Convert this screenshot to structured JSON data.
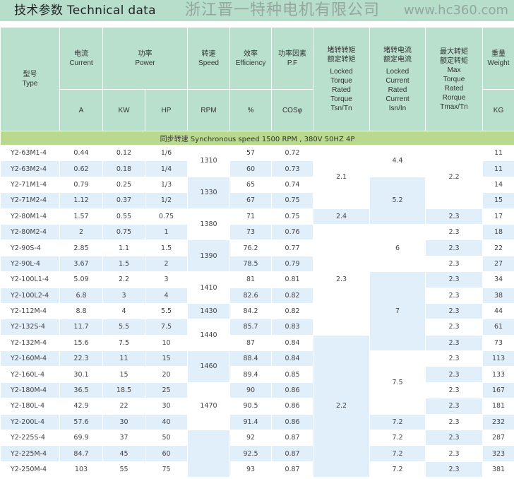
{
  "title": "技术参数  Technical data",
  "header": {
    "type_zh": "型号",
    "type_en": "Type",
    "current_zh": "电流",
    "current_en": "Current",
    "current_unit": "A",
    "power_zh": "功率",
    "power_en": "Power",
    "kw": "KW",
    "hp": "HP",
    "speed_zh": "转速",
    "speed_en": "Speed",
    "speed_unit": "RPM",
    "eff_zh": "效率",
    "eff_en": "Efficiency",
    "eff_unit": "%",
    "pf_zh": "功率因素",
    "pf_en": "P.F",
    "pf_unit": "COSφ",
    "tsn_zh1": "堵转转矩",
    "tsn_zh2": "额定转矩",
    "tsn_en": "Locked Torque Rated Torque Tsn/Tn",
    "isn_zh1": "堵转电流",
    "isn_zh2": "额定电流",
    "isn_en": "Locked Current Rated Current Isn/In",
    "tmax_zh1": "最大转矩",
    "tmax_zh2": "额定转矩",
    "tmax_en": "Max Torque Rated Rorque Tmax/Tn",
    "weight_zh": "重量",
    "weight_en": "Weight",
    "weight_unit": "KG"
  },
  "band": "同步转速  Synchronous speed 1500 RPM , 380V 50HZ  4P",
  "rows": [
    [
      "Y2-63M1-4",
      "0.44",
      "0.12",
      "1/6",
      "57",
      "0.72",
      "11"
    ],
    [
      "Y2-63M2-4",
      "0.62",
      "0.18",
      "1/4",
      "60",
      "0.73",
      "11"
    ],
    [
      "Y2-71M1-4",
      "0.79",
      "0.25",
      "1/3",
      "65",
      "0.74",
      "14"
    ],
    [
      "Y2-71M2-4",
      "1.12",
      "0.37",
      "1/2",
      "67",
      "0.75",
      "15"
    ],
    [
      "Y2-80M1-4",
      "1.57",
      "0.55",
      "0.75",
      "71",
      "0.75",
      "17"
    ],
    [
      "Y2-80M2-4",
      "2",
      "0.75",
      "1",
      "73",
      "0.76",
      "18"
    ],
    [
      "Y2-90S-4",
      "2.85",
      "1.1",
      "1.5",
      "76.2",
      "0.77",
      "22"
    ],
    [
      "Y2-90L-4",
      "3.67",
      "1.5",
      "2",
      "78.5",
      "0.79",
      "27"
    ],
    [
      "Y2-100L1-4",
      "5.09",
      "2.2",
      "3",
      "81",
      "0.81",
      "34"
    ],
    [
      "Y2-100L2-4",
      "6.8",
      "3",
      "4",
      "82.6",
      "0.82",
      "38"
    ],
    [
      "Y2-112M-4",
      "8.8",
      "4",
      "5.5",
      "84.2",
      "0.82",
      "44"
    ],
    [
      "Y2-132S-4",
      "11.7",
      "5.5",
      "7.5",
      "85.7",
      "0.83",
      "61"
    ],
    [
      "Y2-132M-4",
      "15.6",
      "7.5",
      "10",
      "87",
      "0.84",
      "73"
    ],
    [
      "Y2-160M-4",
      "22.3",
      "11",
      "15",
      "88.4",
      "0.84",
      "113"
    ],
    [
      "Y2-160L-4",
      "30.1",
      "15",
      "20",
      "89.4",
      "0.85",
      "133"
    ],
    [
      "Y2-180M-4",
      "36.5",
      "18.5",
      "25",
      "90",
      "0.86",
      "167"
    ],
    [
      "Y2-180L-4",
      "42.9",
      "22",
      "30",
      "90.5",
      "0.86",
      "181"
    ],
    [
      "Y2-200L-4",
      "57.6",
      "30",
      "40",
      "91.4",
      "0.86",
      "232"
    ],
    [
      "Y2-225S-4",
      "69.9",
      "37",
      "50",
      "92",
      "0.87",
      "287"
    ],
    [
      "Y2-225M-4",
      "84.7",
      "45",
      "60",
      "92.5",
      "0.87",
      "323"
    ],
    [
      "Y2-250M-4",
      "103",
      "55",
      "75",
      "93",
      "0.87",
      "381"
    ]
  ],
  "rpm": [
    [
      "1310",
      2
    ],
    [
      "1330",
      2
    ],
    [
      "1380",
      2
    ],
    [
      "1390",
      2
    ],
    [
      "1410",
      2
    ],
    [
      "1430",
      1
    ],
    [
      "1440",
      2
    ],
    [
      "1460",
      2
    ],
    [
      "1470",
      3
    ],
    [
      "",
      3
    ]
  ],
  "tsn": [
    [
      "2.1",
      4
    ],
    [
      "2.4",
      1
    ],
    [
      "2.3",
      7
    ],
    [
      "2.2",
      9
    ]
  ],
  "isn": [
    [
      "4.4",
      2
    ],
    [
      "5.2",
      3
    ],
    [
      "6",
      3
    ],
    [
      "7",
      5
    ],
    [
      "7.5",
      4
    ],
    [
      "7.2",
      1
    ],
    [
      "7.2",
      1
    ],
    [
      "7.2",
      1
    ],
    [
      "7.2",
      1
    ]
  ],
  "tmax": [
    [
      "2.2",
      4
    ],
    [
      "2.3",
      1
    ],
    [
      "2.3",
      1
    ],
    [
      "2.3",
      1
    ],
    [
      "2.3",
      1
    ],
    [
      "2.3",
      1
    ],
    [
      "2.3",
      1
    ],
    [
      "2.3",
      1
    ],
    [
      "2.3",
      1
    ],
    [
      "2.3",
      1
    ],
    [
      "2.3",
      1
    ],
    [
      "2.3",
      1
    ],
    [
      "2.3",
      1
    ],
    [
      "2.3",
      1
    ],
    [
      "2.3",
      1
    ],
    [
      "2.3",
      1
    ],
    [
      "2.3",
      1
    ],
    [
      "2.3",
      1
    ]
  ],
  "watermark": "浙江晋一特种电机有限公司",
  "watermark_url": "www.hc360.com"
}
